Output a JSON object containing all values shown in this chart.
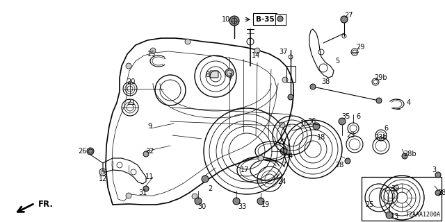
{
  "background_color": "#ffffff",
  "fig_width": 6.4,
  "fig_height": 3.2,
  "dpi": 100,
  "line_color": "#000000",
  "text_color": "#000000",
  "font_size": 7.0,
  "diagram_code": "T2AAA1200A",
  "b35_text": "B-35",
  "fr_text": "FR."
}
